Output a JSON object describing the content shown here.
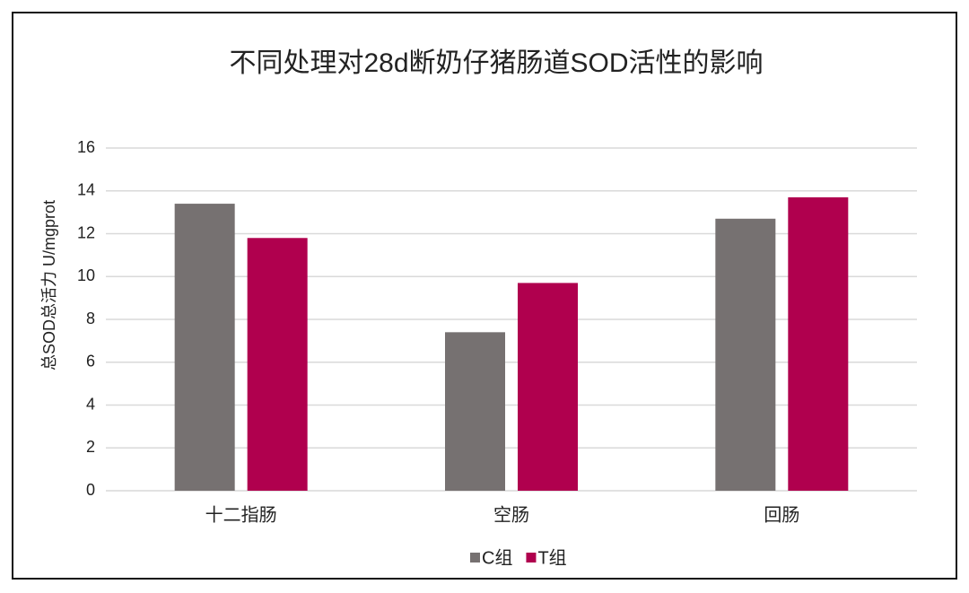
{
  "chart_data": {
    "type": "bar",
    "title": "不同处理对28d断奶仔猪肠道SOD活性的影响",
    "y_label": "总SOD总活力  U/mgprot",
    "categories": [
      "十二指肠",
      "空肠",
      "回肠"
    ],
    "series": [
      {
        "name": "C组",
        "color": "#767171",
        "values": [
          13.4,
          7.4,
          12.7
        ]
      },
      {
        "name": "T组",
        "color": "#b0004e",
        "values": [
          11.8,
          9.7,
          13.7
        ]
      }
    ],
    "ylim": [
      0,
      16
    ],
    "yticks": [
      0,
      2,
      4,
      6,
      8,
      10,
      12,
      14,
      16
    ],
    "grid": true,
    "legend": "bottom"
  }
}
